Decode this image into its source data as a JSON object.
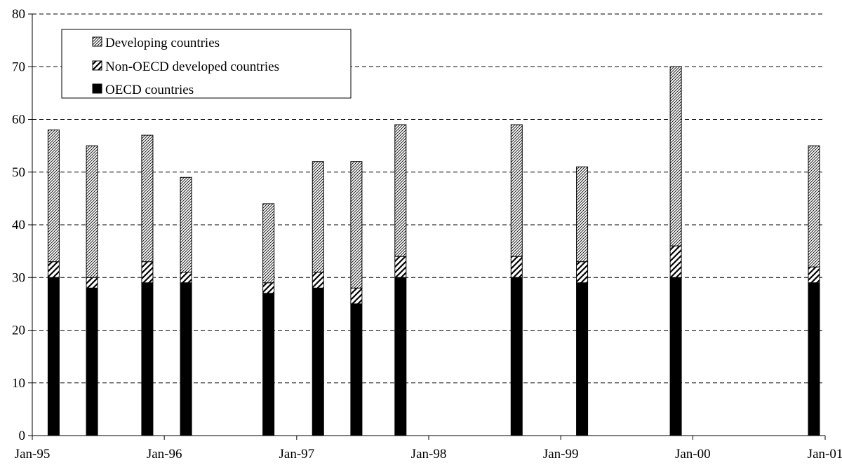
{
  "chart_data": {
    "type": "bar",
    "stacked": true,
    "title": "",
    "xlabel": "",
    "ylabel": "",
    "ylim": [
      0,
      80
    ],
    "y_ticks": [
      0,
      10,
      20,
      30,
      40,
      50,
      60,
      70,
      80
    ],
    "y_tick_labels": [
      "0",
      "10",
      "20",
      "30",
      "40",
      "50",
      "60",
      "70",
      "80"
    ],
    "x_axis": {
      "type": "date",
      "range": [
        "1995-01-01",
        "2001-01-01"
      ],
      "ticks": [
        "1995-01-01",
        "1996-01-01",
        "1997-01-01",
        "1998-01-01",
        "1999-01-01",
        "2000-01-01",
        "2001-01-01"
      ],
      "tick_labels": [
        "Jan-95",
        "Jan-96",
        "Jan-97",
        "Jan-98",
        "Jan-99",
        "Jan-00",
        "Jan-01"
      ]
    },
    "x": [
      "1995-03-01",
      "1995-06-15",
      "1995-11-15",
      "1996-03-01",
      "1996-10-15",
      "1997-03-01",
      "1997-06-15",
      "1997-10-15",
      "1998-09-01",
      "1999-03-01",
      "1999-11-15",
      "2000-12-01"
    ],
    "series": [
      {
        "name": "OECD countries",
        "pattern": "solid",
        "values": [
          30,
          28,
          29,
          29,
          27,
          28,
          25,
          30,
          30,
          29,
          30,
          29
        ]
      },
      {
        "name": "Non-OECD developed countries",
        "pattern": "wide-diagonal-hatch",
        "values": [
          3,
          2,
          4,
          2,
          2,
          3,
          3,
          4,
          4,
          4,
          6,
          3
        ]
      },
      {
        "name": "Developing countries",
        "pattern": "fine-diagonal-hatch",
        "values": [
          25,
          25,
          24,
          18,
          15,
          21,
          24,
          25,
          25,
          18,
          34,
          23
        ]
      }
    ],
    "grid": {
      "horizontal": true,
      "style": "dashed"
    },
    "legend": {
      "placement": "top-left",
      "entries": [
        "Developing countries",
        "Non-OECD developed countries",
        "OECD countries"
      ]
    }
  }
}
